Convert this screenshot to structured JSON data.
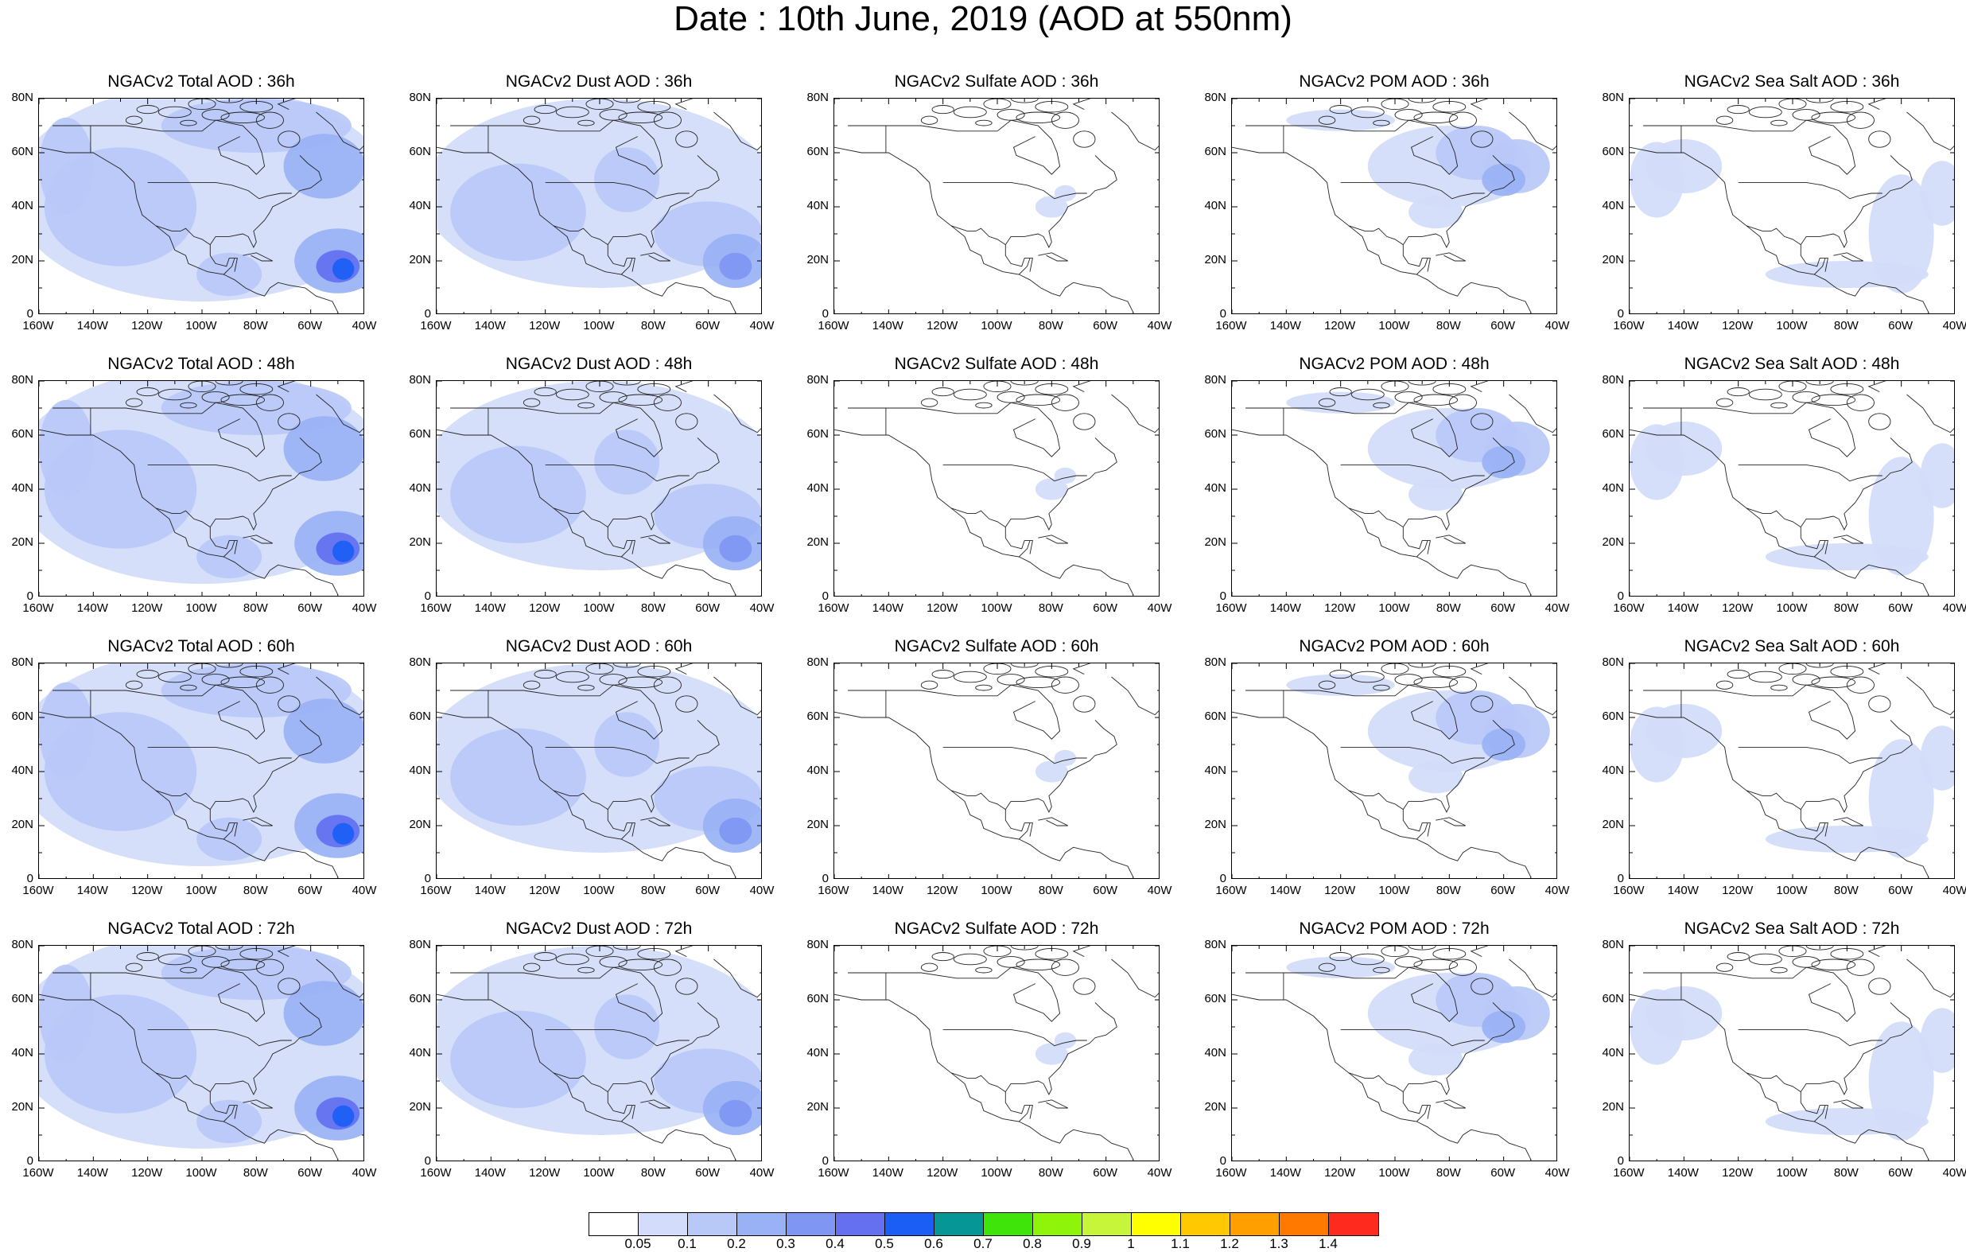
{
  "title": "Date : 10th June, 2019 (AOD at 550nm)",
  "panels": [
    {
      "title": "NGACv2 Total AOD : 36h",
      "species": "total"
    },
    {
      "title": "NGACv2 Dust AOD : 36h",
      "species": "dust"
    },
    {
      "title": "NGACv2 Sulfate AOD : 36h",
      "species": "sulfate"
    },
    {
      "title": "NGACv2 POM AOD : 36h",
      "species": "pom"
    },
    {
      "title": "NGACv2 Sea Salt AOD : 36h",
      "species": "seasalt"
    },
    {
      "title": "NGACv2 Total AOD : 48h",
      "species": "total"
    },
    {
      "title": "NGACv2 Dust AOD : 48h",
      "species": "dust"
    },
    {
      "title": "NGACv2 Sulfate AOD : 48h",
      "species": "sulfate"
    },
    {
      "title": "NGACv2 POM AOD : 48h",
      "species": "pom"
    },
    {
      "title": "NGACv2 Sea Salt AOD : 48h",
      "species": "seasalt"
    },
    {
      "title": "NGACv2 Total AOD : 60h",
      "species": "total"
    },
    {
      "title": "NGACv2 Dust AOD : 60h",
      "species": "dust"
    },
    {
      "title": "NGACv2 Sulfate AOD : 60h",
      "species": "sulfate"
    },
    {
      "title": "NGACv2 POM AOD : 60h",
      "species": "pom"
    },
    {
      "title": "NGACv2 Sea Salt AOD : 60h",
      "species": "seasalt"
    },
    {
      "title": "NGACv2 Total AOD : 72h",
      "species": "total"
    },
    {
      "title": "NGACv2 Dust AOD : 72h",
      "species": "dust"
    },
    {
      "title": "NGACv2 Sulfate AOD : 72h",
      "species": "sulfate"
    },
    {
      "title": "NGACv2 POM AOD : 72h",
      "species": "pom"
    },
    {
      "title": "NGACv2 Sea Salt  AOD : 72h",
      "species": "seasalt"
    }
  ],
  "axes": {
    "lon_ticks": [
      "160W",
      "140W",
      "120W",
      "100W",
      "80W",
      "60W",
      "40W"
    ],
    "lat_ticks": [
      "80N",
      "60N",
      "40N",
      "20N",
      "0"
    ],
    "lon_range": [
      -160,
      -40
    ],
    "lat_range": [
      0,
      80
    ]
  },
  "colorbar": {
    "colors": [
      "#ffffff",
      "#d3dcfa",
      "#b8c8f7",
      "#99b2f5",
      "#7f96f3",
      "#6470f0",
      "#1a5ef5",
      "#069696",
      "#3fe40a",
      "#8ef40a",
      "#c6f53a",
      "#ffff00",
      "#ffc800",
      "#ffa000",
      "#ff7800",
      "#ff2a1e"
    ],
    "labels": [
      "0.05",
      "0.1",
      "0.2",
      "0.3",
      "0.4",
      "0.5",
      "0.6",
      "0.7",
      "0.8",
      "0.9",
      "1",
      "1.1",
      "1.2",
      "1.3",
      "1.4"
    ]
  }
}
